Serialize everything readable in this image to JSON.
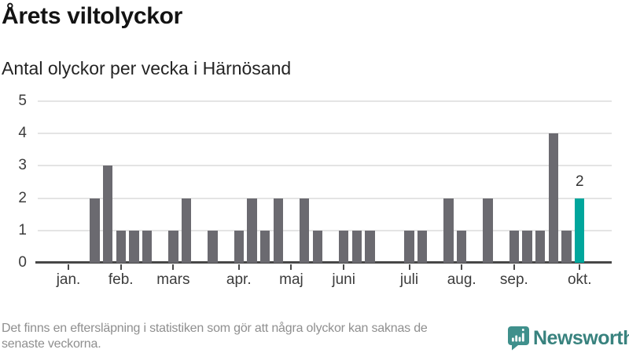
{
  "title": "Årets viltolyckor",
  "subtitle": "Antal olyckor per vecka i Härnösand",
  "footnote": {
    "lines": [
      "Det finns en eftersläpning i statistiken som gör att några olyckor kan saknas de",
      "senaste veckorna."
    ]
  },
  "logo": {
    "text": "Newsworthy",
    "icon": "newsworthy-speech-bubble-bar-chart-icon",
    "icon_color": "#3f908c",
    "text_color": "#38827e"
  },
  "chart_data": {
    "type": "bar",
    "title": "Årets viltolyckor",
    "subtitle": "Antal olyckor per vecka i Härnösand",
    "x_unit": "week-of-year",
    "values": [
      0,
      0,
      0,
      0,
      2,
      3,
      1,
      1,
      1,
      0,
      1,
      2,
      0,
      1,
      0,
      1,
      2,
      1,
      2,
      0,
      2,
      1,
      0,
      1,
      1,
      1,
      0,
      0,
      1,
      1,
      0,
      2,
      1,
      0,
      2,
      0,
      1,
      1,
      1,
      4,
      1,
      2,
      0,
      0
    ],
    "month_ticks": [
      {
        "label": "jan.",
        "slot": 2
      },
      {
        "label": "feb.",
        "slot": 6
      },
      {
        "label": "mars",
        "slot": 10
      },
      {
        "label": "apr.",
        "slot": 15
      },
      {
        "label": "maj",
        "slot": 19
      },
      {
        "label": "juni",
        "slot": 23
      },
      {
        "label": "juli",
        "slot": 28
      },
      {
        "label": "aug.",
        "slot": 32
      },
      {
        "label": "sep.",
        "slot": 36
      },
      {
        "label": "okt.",
        "slot": 41
      }
    ],
    "yticks": [
      0,
      1,
      2,
      3,
      4,
      5
    ],
    "ylim": [
      0,
      5
    ],
    "grid": true,
    "legend": "none",
    "bar_color": "#6b6a70",
    "highlight_color": "#00a69c",
    "highlight_index": 41,
    "annotation": {
      "slot": 41,
      "value": 2,
      "text": "2"
    }
  }
}
